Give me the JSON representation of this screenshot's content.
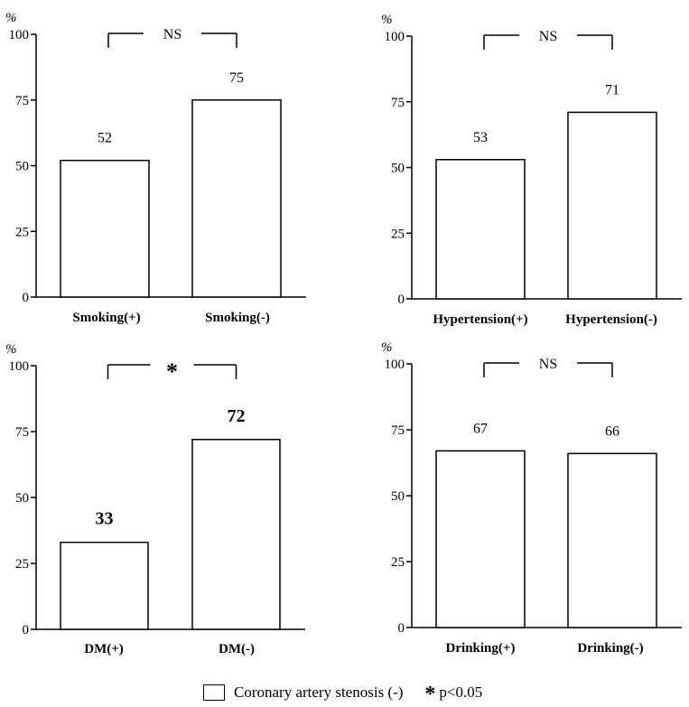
{
  "chart_data": [
    {
      "type": "bar",
      "unit": "%",
      "categories": [
        "Smoking(+)",
        "Smoking(-)"
      ],
      "values": [
        52,
        75
      ],
      "value_labels": [
        "52",
        "75"
      ],
      "ylim": [
        0,
        100
      ],
      "yticks": [
        "0",
        "25",
        "50",
        "75",
        "100"
      ],
      "significance": "NS",
      "bold_values": false
    },
    {
      "type": "bar",
      "unit": "%",
      "categories": [
        "Hypertension(+)",
        "Hypertension(-)"
      ],
      "values": [
        53,
        71
      ],
      "value_labels": [
        "53",
        "71"
      ],
      "ylim": [
        0,
        100
      ],
      "yticks": [
        "0",
        "25",
        "50",
        "75",
        "100"
      ],
      "significance": "NS",
      "bold_values": false
    },
    {
      "type": "bar",
      "unit": "%",
      "categories": [
        "DM(+)",
        "DM(-)"
      ],
      "values": [
        33,
        72
      ],
      "value_labels": [
        "33",
        "72"
      ],
      "ylim": [
        0,
        100
      ],
      "yticks": [
        "0",
        "25",
        "50",
        "75",
        "100"
      ],
      "significance": "*",
      "bold_values": true
    },
    {
      "type": "bar",
      "unit": "%",
      "categories": [
        "Drinking(+)",
        "Drinking(-)"
      ],
      "values": [
        67,
        66
      ],
      "value_labels": [
        "67",
        "66"
      ],
      "ylim": [
        0,
        100
      ],
      "yticks": [
        "0",
        "25",
        "50",
        "75",
        "100"
      ],
      "significance": "NS",
      "bold_values": false
    }
  ],
  "legend": {
    "series_label": "Coronary artery stenosis (-)",
    "star_symbol": "*",
    "note": "p<0.05"
  },
  "colors": {
    "bar_fill": "#ffffff",
    "stroke": "#000000"
  }
}
